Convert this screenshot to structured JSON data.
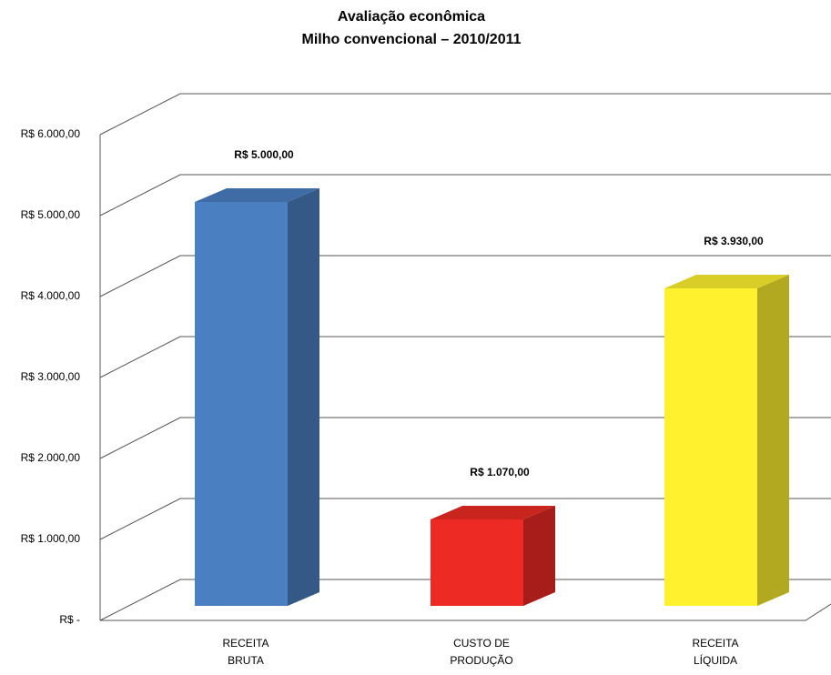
{
  "chart_data": {
    "type": "bar3d",
    "title": [
      "Avaliação econômica",
      "Milho convencional – 2010/2011"
    ],
    "categories": [
      [
        "RECEITA",
        "BRUTA"
      ],
      [
        "CUSTO DE",
        "PRODUÇÃO"
      ],
      [
        "RECEITA",
        "LÍQUIDA"
      ]
    ],
    "values": [
      5000,
      1070,
      3930
    ],
    "value_labels": [
      "R$ 5.000,00",
      "R$ 1.070,00",
      "R$ 3.930,00"
    ],
    "colors": [
      "#4a7fc1",
      "#ee2a24",
      "#fff12e"
    ],
    "ylim": [
      0,
      6000
    ],
    "yticks": [
      {
        "value": 0,
        "label": "R$ -"
      },
      {
        "value": 1000,
        "label": "R$ 1.000,00"
      },
      {
        "value": 2000,
        "label": "R$ 2.000,00"
      },
      {
        "value": 3000,
        "label": "R$ 3.000,00"
      },
      {
        "value": 4000,
        "label": "R$ 4.000,00"
      },
      {
        "value": 5000,
        "label": "R$ 5.000,00"
      },
      {
        "value": 6000,
        "label": "R$ 6.000,00"
      }
    ],
    "grid": true
  }
}
